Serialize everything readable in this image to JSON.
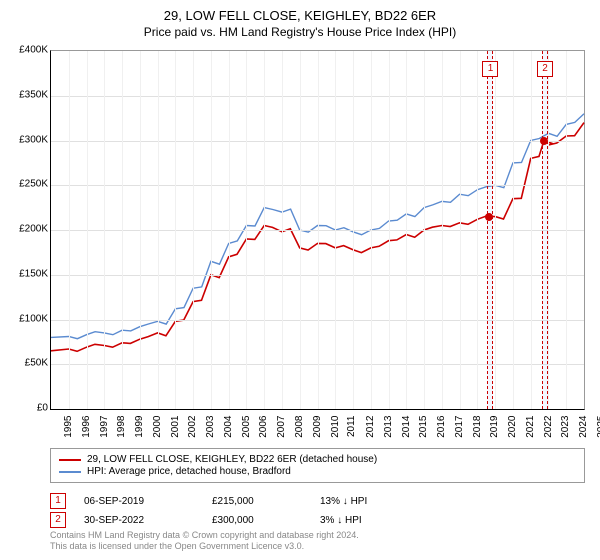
{
  "title": "29, LOW FELL CLOSE, KEIGHLEY, BD22 6ER",
  "subtitle": "Price paid vs. HM Land Registry's House Price Index (HPI)",
  "chart": {
    "type": "line",
    "x_start_year": 1995,
    "x_end_year": 2025,
    "ylim_min": 0,
    "ylim_max": 400000,
    "ytick_step": 50000,
    "y_prefix": "£",
    "y_suffix_thousands": "K",
    "background_color": "#ffffff",
    "grid_color": "#e0e0e0",
    "axis_color": "#000000",
    "series": [
      {
        "name": "29, LOW FELL CLOSE, KEIGHLEY, BD22 6ER (detached house)",
        "color": "#cc0000",
        "width": 1.6,
        "points": [
          [
            1995,
            65000
          ],
          [
            1996,
            67000
          ],
          [
            1997,
            69000
          ],
          [
            1998,
            71000
          ],
          [
            1999,
            74000
          ],
          [
            2000,
            78000
          ],
          [
            2001,
            85000
          ],
          [
            2002,
            98000
          ],
          [
            2003,
            120000
          ],
          [
            2004,
            150000
          ],
          [
            2005,
            170000
          ],
          [
            2006,
            190000
          ],
          [
            2007,
            205000
          ],
          [
            2008,
            198000
          ],
          [
            2009,
            180000
          ],
          [
            2010,
            185000
          ],
          [
            2011,
            180000
          ],
          [
            2012,
            178000
          ],
          [
            2013,
            180000
          ],
          [
            2014,
            188000
          ],
          [
            2015,
            195000
          ],
          [
            2016,
            200000
          ],
          [
            2017,
            205000
          ],
          [
            2018,
            208000
          ],
          [
            2019,
            212000
          ],
          [
            2020,
            215000
          ],
          [
            2021,
            235000
          ],
          [
            2022,
            280000
          ],
          [
            2022.75,
            300000
          ],
          [
            2023,
            295000
          ],
          [
            2024,
            305000
          ],
          [
            2025,
            320000
          ]
        ]
      },
      {
        "name": "HPI: Average price, detached house, Bradford",
        "color": "#5b8bd0",
        "width": 1.4,
        "points": [
          [
            1995,
            80000
          ],
          [
            1996,
            81000
          ],
          [
            1997,
            83000
          ],
          [
            1998,
            85000
          ],
          [
            1999,
            88000
          ],
          [
            2000,
            92000
          ],
          [
            2001,
            98000
          ],
          [
            2002,
            112000
          ],
          [
            2003,
            135000
          ],
          [
            2004,
            165000
          ],
          [
            2005,
            185000
          ],
          [
            2006,
            205000
          ],
          [
            2007,
            225000
          ],
          [
            2008,
            220000
          ],
          [
            2009,
            200000
          ],
          [
            2010,
            205000
          ],
          [
            2011,
            200000
          ],
          [
            2012,
            198000
          ],
          [
            2013,
            200000
          ],
          [
            2014,
            210000
          ],
          [
            2015,
            218000
          ],
          [
            2016,
            225000
          ],
          [
            2017,
            232000
          ],
          [
            2018,
            240000
          ],
          [
            2019,
            245000
          ],
          [
            2020,
            250000
          ],
          [
            2021,
            275000
          ],
          [
            2022,
            300000
          ],
          [
            2023,
            308000
          ],
          [
            2024,
            318000
          ],
          [
            2025,
            330000
          ]
        ]
      }
    ],
    "markers": [
      {
        "idx": "1",
        "year": 2019.68,
        "price": 215000
      },
      {
        "idx": "2",
        "year": 2022.75,
        "price": 300000
      }
    ]
  },
  "legend": {
    "items": [
      {
        "color": "#cc0000",
        "label": "29, LOW FELL CLOSE, KEIGHLEY, BD22 6ER (detached house)"
      },
      {
        "color": "#5b8bd0",
        "label": "HPI: Average price, detached house, Bradford"
      }
    ]
  },
  "annotations": [
    {
      "idx": "1",
      "date": "06-SEP-2019",
      "price": "£215,000",
      "pct": "13% ↓ HPI"
    },
    {
      "idx": "2",
      "date": "30-SEP-2022",
      "price": "£300,000",
      "pct": "3% ↓ HPI"
    }
  ],
  "footer": {
    "line1": "Contains HM Land Registry data © Crown copyright and database right 2024.",
    "line2": "This data is licensed under the Open Government Licence v3.0."
  }
}
